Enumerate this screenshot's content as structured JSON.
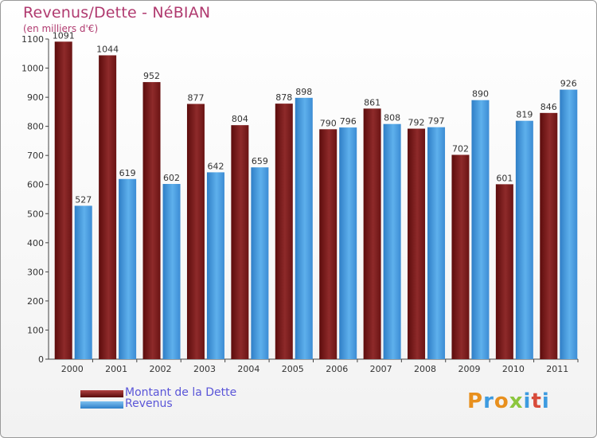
{
  "chart_data": {
    "type": "bar",
    "title": "Revenus/Dette - NéBIAN",
    "subtitle": "(en milliers d'€)",
    "categories": [
      "2000",
      "2001",
      "2002",
      "2003",
      "2004",
      "2005",
      "2006",
      "2007",
      "2008",
      "2009",
      "2010",
      "2011"
    ],
    "series": [
      {
        "name": "Montant de la Dette",
        "color": "#7a1c1c",
        "values": [
          1091,
          1044,
          952,
          877,
          804,
          878,
          790,
          861,
          792,
          702,
          601,
          846
        ]
      },
      {
        "name": "Revenus",
        "color": "#3d8fd6",
        "values": [
          527,
          619,
          602,
          642,
          659,
          898,
          796,
          808,
          797,
          890,
          819,
          926
        ]
      }
    ],
    "ylim": [
      0,
      1100
    ],
    "yticks": [
      0,
      100,
      200,
      300,
      400,
      500,
      600,
      700,
      800,
      900,
      1000,
      1100
    ],
    "grid": false,
    "legend": "bottom-left"
  },
  "logo": {
    "text": "Proxiti"
  }
}
